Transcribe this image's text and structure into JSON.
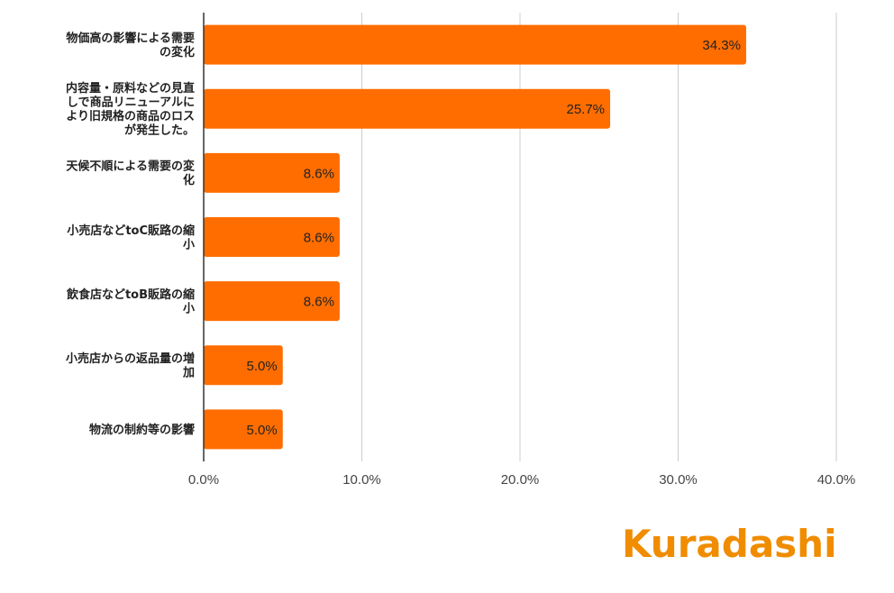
{
  "chart_data": {
    "type": "bar",
    "orientation": "horizontal",
    "categories": [
      [
        "物価高の影響による需要",
        "の変化"
      ],
      [
        "内容量・原料などの見直",
        "しで商品リニューアルに",
        "より旧規格の商品のロス",
        "が発生した。"
      ],
      [
        "天候不順による需要の変",
        "化"
      ],
      [
        "小売店などtoC販路の縮",
        "小"
      ],
      [
        "飲食店などtoB販路の縮",
        "小"
      ],
      [
        "小売店からの返品量の増",
        "加"
      ],
      [
        "物流の制約等の影響"
      ]
    ],
    "values": [
      34.3,
      25.7,
      8.6,
      8.6,
      8.6,
      5.0,
      5.0
    ],
    "data_labels": [
      "34.3%",
      "25.7%",
      "8.6%",
      "8.6%",
      "8.6%",
      "5.0%",
      "5.0%"
    ],
    "x_ticks": [
      0,
      10,
      20,
      30,
      40
    ],
    "x_tick_labels": [
      "0.0%",
      "10.0%",
      "20.0%",
      "30.0%",
      "40.0%"
    ],
    "xlim": [
      0,
      40
    ],
    "grid": true,
    "bar_color": "#ff6d00"
  },
  "logo": {
    "text": "Kuradashi",
    "color": "#f08c00"
  }
}
